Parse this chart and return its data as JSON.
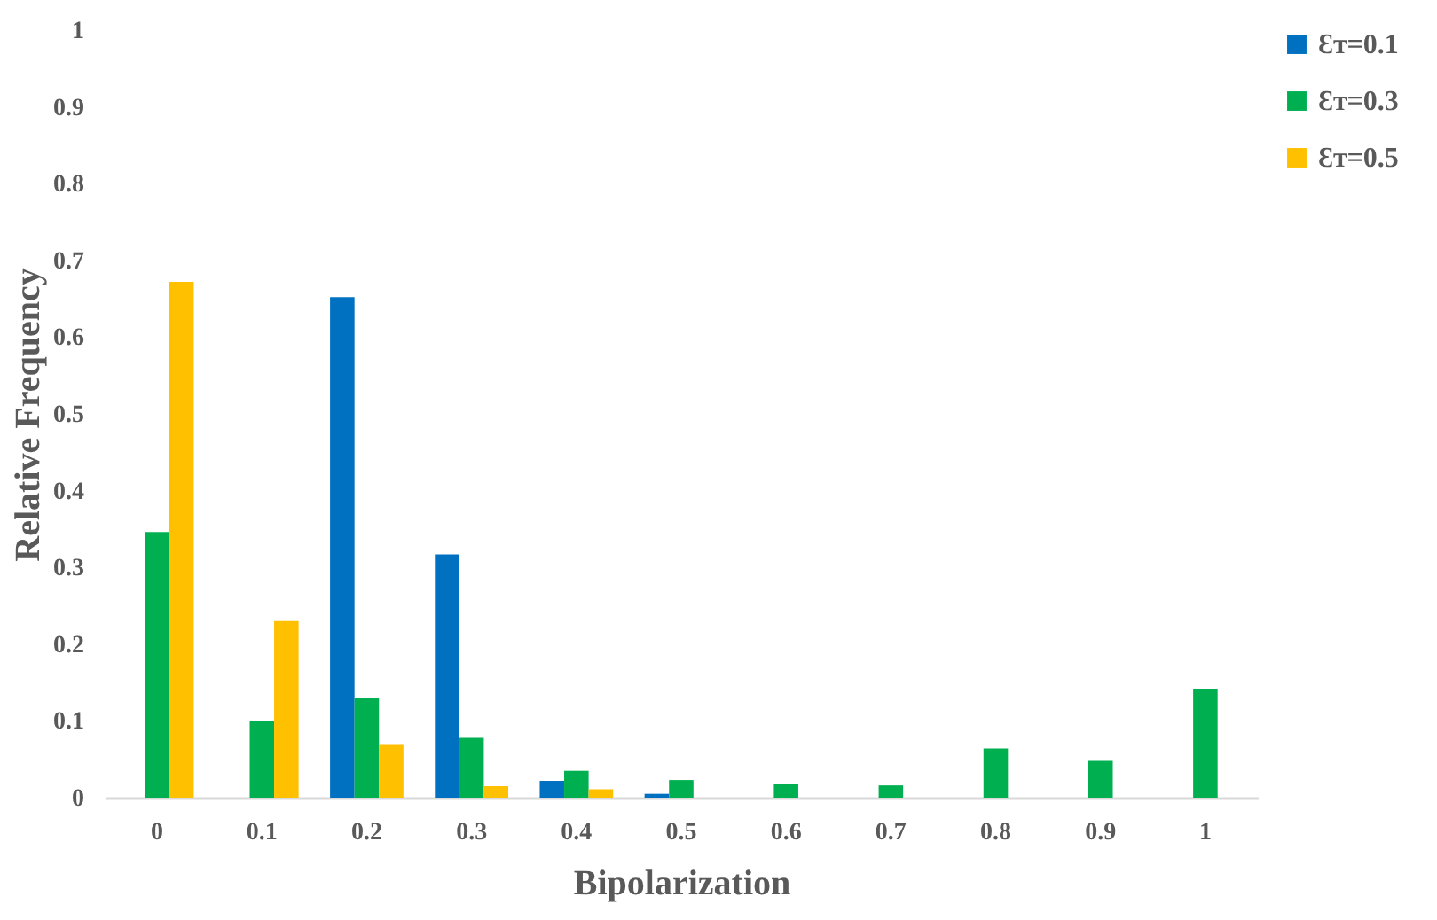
{
  "chart_data": {
    "type": "bar",
    "xlabel": "Bipolarization",
    "ylabel": "Relative Frequency",
    "categories": [
      "0",
      "0.1",
      "0.2",
      "0.3",
      "0.4",
      "0.5",
      "0.6",
      "0.7",
      "0.8",
      "0.9",
      "1"
    ],
    "series": [
      {
        "name": "Ɛᴛ=0.1",
        "color": "#0070c0",
        "values": [
          null,
          null,
          0.652,
          0.317,
          0.022,
          0.005,
          null,
          null,
          null,
          null,
          null
        ]
      },
      {
        "name": "Ɛᴛ=0.3",
        "color": "#00b050",
        "values": [
          0.346,
          0.1,
          0.13,
          0.078,
          0.035,
          0.023,
          0.018,
          0.016,
          0.064,
          0.048,
          0.142
        ]
      },
      {
        "name": "Ɛᴛ=0.5",
        "color": "#ffc000",
        "values": [
          0.672,
          0.23,
          0.07,
          0.015,
          0.011,
          null,
          null,
          null,
          null,
          null,
          null
        ]
      }
    ],
    "ylim": [
      0,
      1
    ],
    "yticks": [
      0,
      0.1,
      0.2,
      0.3,
      0.4,
      0.5,
      0.6,
      0.7,
      0.8,
      0.9,
      1
    ],
    "grid": false,
    "legend": "right"
  }
}
